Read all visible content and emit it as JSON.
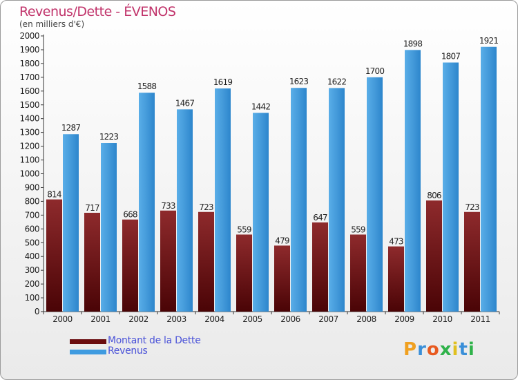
{
  "header": {
    "title": "Revenus/Dette - ÉVENOS",
    "subtitle": "(en milliers d'€)"
  },
  "colors": {
    "title": "#c1346b",
    "dette": "#7a1a1c",
    "revenus": "#2f8fd8",
    "legend_text": "#4a52d8"
  },
  "legend": {
    "dette_label": "Montant de la Dette",
    "revenus_label": "Revenus"
  },
  "logo": {
    "text": "Proxiti"
  },
  "chart_data": {
    "type": "bar",
    "title": "Revenus/Dette - ÉVENOS",
    "subtitle": "(en milliers d'€)",
    "categories": [
      "2000",
      "2001",
      "2002",
      "2003",
      "2004",
      "2005",
      "2006",
      "2007",
      "2008",
      "2009",
      "2010",
      "2011"
    ],
    "series": [
      {
        "name": "Montant de la Dette",
        "values": [
          814,
          717,
          668,
          733,
          723,
          559,
          479,
          647,
          559,
          473,
          806,
          723
        ]
      },
      {
        "name": "Revenus",
        "values": [
          1287,
          1223,
          1588,
          1467,
          1619,
          1442,
          1623,
          1622,
          1700,
          1898,
          1807,
          1921
        ]
      }
    ],
    "ylim": [
      0,
      2000
    ],
    "ytick_step": 100,
    "legend_position": "bottom-left",
    "data_labels": true,
    "grid": false
  }
}
